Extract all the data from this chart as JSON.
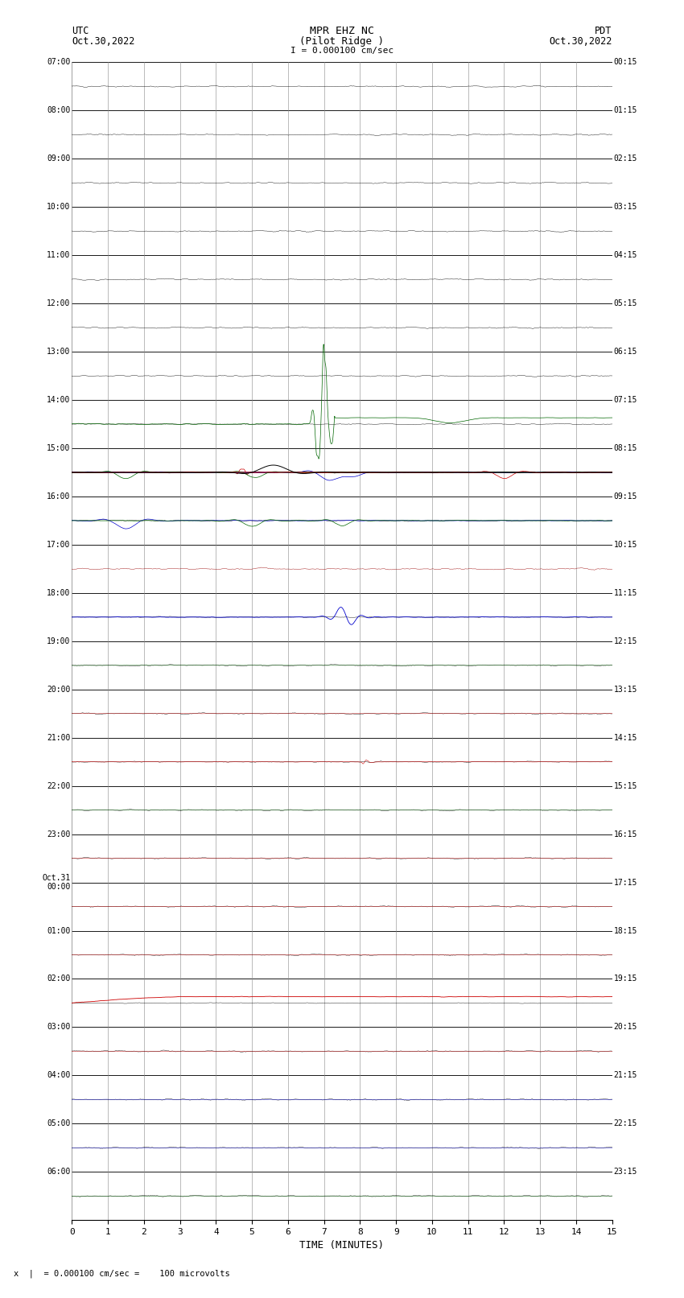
{
  "title_line1": "MPR EHZ NC",
  "title_line2": "(Pilot Ridge )",
  "scale_label": "I = 0.000100 cm/sec",
  "utc_label1": "UTC",
  "utc_label2": "Oct.30,2022",
  "pdt_label1": "PDT",
  "pdt_label2": "Oct.30,2022",
  "footer_label": "x  |  = 0.000100 cm/sec =    100 microvolts",
  "xlabel": "TIME (MINUTES)",
  "left_times": [
    "07:00",
    "08:00",
    "09:00",
    "10:00",
    "11:00",
    "12:00",
    "13:00",
    "14:00",
    "15:00",
    "16:00",
    "17:00",
    "18:00",
    "19:00",
    "20:00",
    "21:00",
    "22:00",
    "23:00",
    "Oct.31\n00:00",
    "01:00",
    "02:00",
    "03:00",
    "04:00",
    "05:00",
    "06:00"
  ],
  "right_times": [
    "00:15",
    "01:15",
    "02:15",
    "03:15",
    "04:15",
    "05:15",
    "06:15",
    "07:15",
    "08:15",
    "09:15",
    "10:15",
    "11:15",
    "12:15",
    "13:15",
    "14:15",
    "15:15",
    "16:15",
    "17:15",
    "18:15",
    "19:15",
    "20:15",
    "21:15",
    "22:15",
    "23:15"
  ],
  "n_rows": 24,
  "n_minutes": 15,
  "bg_color": "#ffffff",
  "grid_color": "#aaaaaa",
  "fig_width": 8.5,
  "fig_height": 16.13
}
